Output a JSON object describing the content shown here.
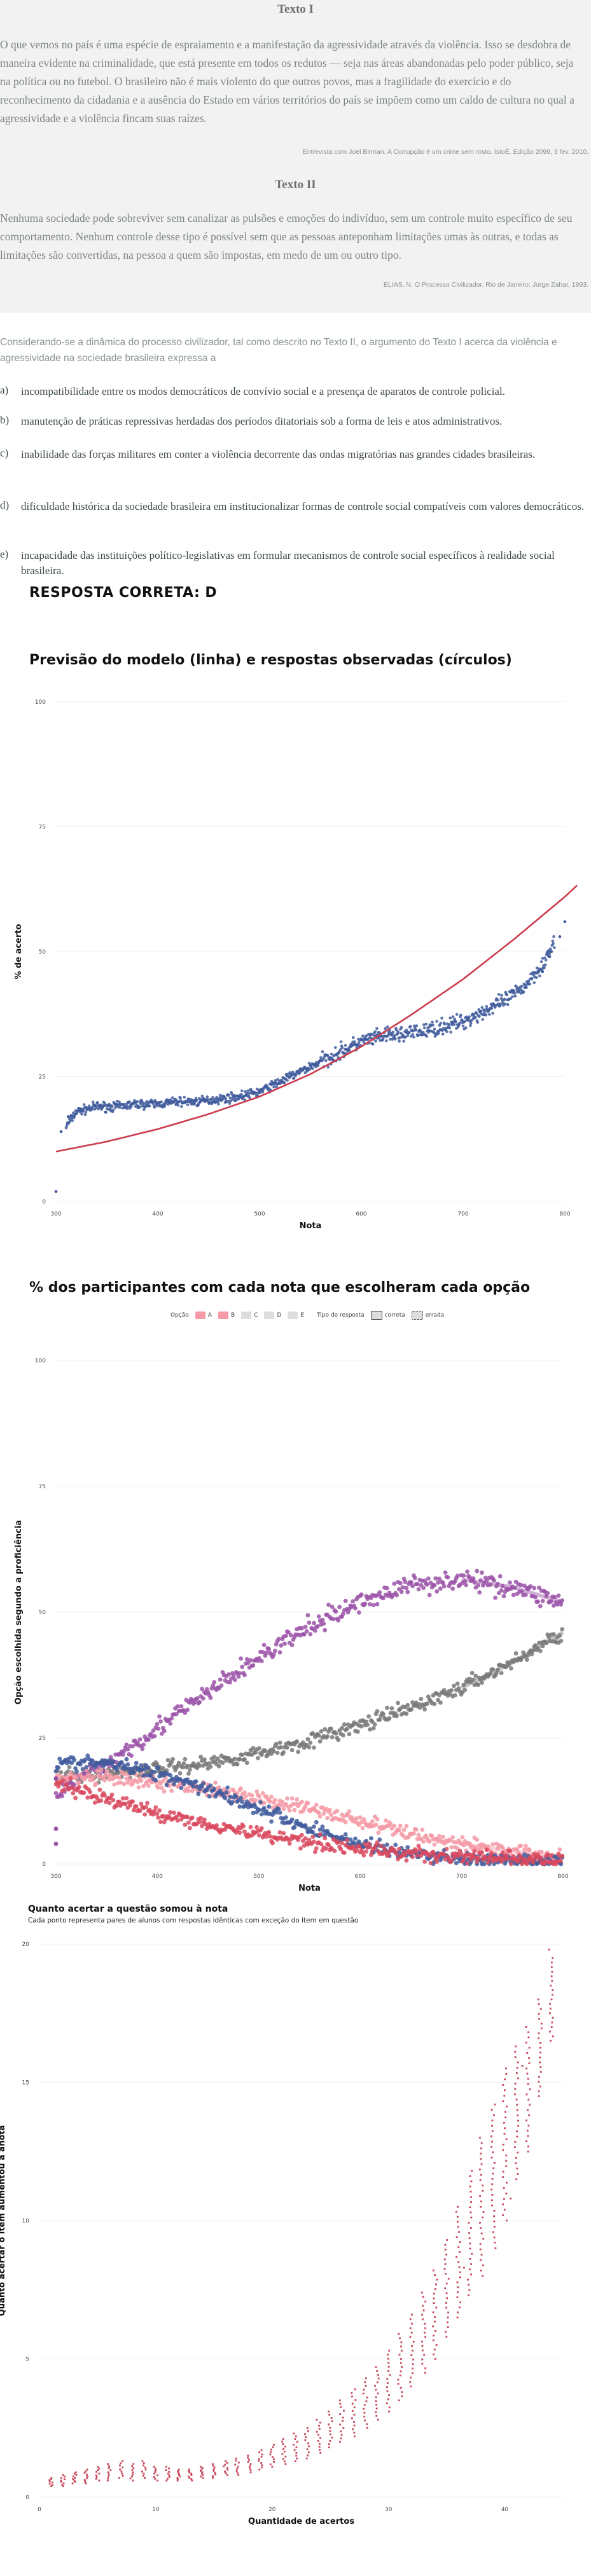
{
  "question": {
    "texto1_title": "Texto I",
    "texto1_body": "O que vemos no país é uma espécie de espraiamento e a manifestação da agressividade através da violência. Isso se desdobra de maneira evidente na criminalidade, que está presente em todos os redutos — seja nas áreas abandonadas pelo poder público, seja na política ou no futebol. O brasileiro não é mais violento do que outros povos, mas a fragilidade do exercício e do reconhecimento da cidadania e a ausência do Estado em vários territórios do país se impõem como um caldo de cultura no qual a agressividade e a violência fincam suas raízes.",
    "texto1_cite": "Entrevista com Joel Birman. A Corrupção é um crime sem rosto. IstoÉ. Edição 2099, 3 fev. 2010.",
    "texto2_title": "Texto II",
    "texto2_body": "Nenhuma sociedade pode sobreviver sem canalizar as pulsões e emoções do indivíduo, sem um controle muito específico de seu comportamento. Nenhum controle desse tipo é possível sem que as pessoas anteponham limitações umas às outras, e todas as limitações são convertidas, na pessoa a quem são impostas, em medo de um ou outro tipo.",
    "texto2_cite": "ELIAS, N. O Processo Civilizador. Rio de Janeiro: Jorge Zahar, 1993.",
    "stem": "Considerando-se a dinâmica do processo civilizador, tal como descrito no Texto II, o argumento do Texto I acerca da violência e agressividade na sociedade brasileira expressa a",
    "alternatives": [
      {
        "letter": "a)",
        "text": "incompatibilidade entre os modos democráticos de convívio social e a presença de aparatos de controle policial."
      },
      {
        "letter": "b)",
        "text": "manutenção de práticas repressivas herdadas dos períodos ditatoriais sob a forma de leis e atos administrativos."
      },
      {
        "letter": "c)",
        "text": "inabilidade das forças militares em conter a violência decorrente das ondas migratórias nas grandes cidades brasileiras."
      },
      {
        "letter": "d)",
        "text": "dificuldade histórica da sociedade brasileira em institucionalizar formas de controle social compatíveis com valores democráticos."
      },
      {
        "letter": "e)",
        "text": "incapacidade das instituições político-legislativas em formular mecanismos de controle social específicos à realidade social brasileira."
      }
    ],
    "answer": "RESPOSTA CORRETA: D"
  },
  "colors": {
    "model_line": "#cc3a4d",
    "observed": "#3f5a9c",
    "opt_A": "#d9495e",
    "opt_B": "#f59aa6",
    "opt_C": "#3f5a9c",
    "opt_D": "#9b52a8",
    "opt_E": "#787878",
    "gain": "#c8475a"
  },
  "chart_data": [
    {
      "type": "scatter",
      "title": "Previsão do modelo (linha) e respostas observadas (círculos)",
      "xlabel": "Nota",
      "ylabel": "% de acerto",
      "xlim": [
        300,
        800
      ],
      "ylim": [
        0,
        100
      ],
      "x_ticks": [
        "300",
        "400",
        "500",
        "600",
        "700",
        "800"
      ],
      "y_ticks": [
        "0",
        "25",
        "50",
        "75",
        "100"
      ],
      "series": [
        {
          "kind": "line",
          "x": [
            300,
            350,
            400,
            450,
            500,
            550,
            600,
            650,
            700,
            750,
            800
          ],
          "y": [
            10,
            12,
            14.5,
            17.5,
            21,
            25.5,
            31,
            37.5,
            44.5,
            52.5,
            61
          ]
        },
        {
          "kind": "points",
          "x": [
            300,
            310,
            320,
            340,
            360,
            380,
            400,
            420,
            440,
            460,
            480,
            500,
            520,
            540,
            560,
            580,
            600,
            620,
            640,
            660,
            680,
            700,
            720,
            740,
            760,
            780,
            800
          ],
          "y": [
            2,
            15,
            18,
            19,
            19,
            19.5,
            19.5,
            20,
            20,
            20.5,
            21,
            22,
            24,
            26,
            28,
            30,
            32,
            33,
            33.5,
            34,
            35,
            36,
            38,
            40,
            43,
            48,
            56
          ]
        }
      ]
    },
    {
      "type": "scatter",
      "title": "% dos participantes com cada nota que escolheram cada opção",
      "xlabel": "Nota",
      "ylabel": "Opção escolhida segundo a proficiência",
      "xlim": [
        300,
        800
      ],
      "ylim": [
        0,
        100
      ],
      "x_ticks": [
        "300",
        "400",
        "500",
        "600",
        "700",
        "800"
      ],
      "y_ticks": [
        "0",
        "25",
        "50",
        "75",
        "100"
      ],
      "legend": {
        "opcao_label": "Opção",
        "tipo_label": "Tipo de resposta",
        "options": [
          "A",
          "B",
          "C",
          "D",
          "E"
        ],
        "tipos": [
          "correta",
          "errada"
        ]
      },
      "series": [
        {
          "name": "A",
          "x": [
            300,
            350,
            400,
            450,
            500,
            550,
            600,
            650,
            700,
            750,
            800
          ],
          "y": [
            16,
            13,
            10,
            8,
            6,
            4.5,
            3,
            2,
            1.5,
            1,
            0.5
          ]
        },
        {
          "name": "B",
          "x": [
            300,
            350,
            400,
            450,
            500,
            550,
            600,
            650,
            700,
            750,
            800
          ],
          "y": [
            17,
            17,
            16,
            15,
            13,
            11,
            8.5,
            6,
            4,
            2.5,
            1.5
          ]
        },
        {
          "name": "C",
          "x": [
            300,
            350,
            400,
            450,
            500,
            550,
            600,
            650,
            700,
            750,
            800
          ],
          "y": [
            20,
            20,
            18,
            15,
            11,
            7,
            4,
            2,
            1,
            0.5,
            0.3
          ]
        },
        {
          "name": "D",
          "x": [
            300,
            350,
            400,
            450,
            500,
            550,
            600,
            650,
            700,
            750,
            800
          ],
          "y": [
            14,
            20,
            27,
            34,
            41,
            47,
            52,
            55.5,
            56.5,
            55,
            52
          ]
        },
        {
          "name": "E",
          "x": [
            300,
            350,
            400,
            450,
            500,
            550,
            600,
            650,
            700,
            750,
            800
          ],
          "y": [
            17,
            18,
            19,
            20,
            22,
            24.5,
            27.5,
            31,
            35,
            40,
            46
          ]
        }
      ]
    },
    {
      "type": "scatter",
      "title": "Quanto acertar a questão somou à nota",
      "subtitle": "Cada ponto representa pares de alunos com respostas idênticas com exceção do item em questão",
      "xlabel": "Quantidade de acertos",
      "ylabel": "Quanto acertar o item aumentou a anota",
      "xlim": [
        0,
        45
      ],
      "ylim": [
        0,
        20
      ],
      "x_ticks": [
        "0",
        "10",
        "20",
        "30",
        "40"
      ],
      "y_ticks": [
        "0",
        "5",
        "10",
        "15",
        "20"
      ],
      "x": [
        1,
        2,
        3,
        4,
        5,
        6,
        7,
        8,
        9,
        10,
        11,
        12,
        13,
        14,
        15,
        16,
        17,
        18,
        19,
        20,
        21,
        22,
        23,
        24,
        25,
        26,
        27,
        28,
        29,
        30,
        31,
        32,
        33,
        34,
        35,
        36,
        37,
        38,
        39,
        40,
        41,
        42,
        43,
        44
      ],
      "y_min": [
        0.4,
        0.4,
        0.5,
        0.5,
        0.6,
        0.6,
        0.7,
        0.6,
        0.7,
        0.6,
        0.6,
        0.6,
        0.6,
        0.7,
        0.7,
        0.8,
        0.8,
        0.9,
        1.0,
        1.1,
        1.2,
        1.3,
        1.4,
        1.6,
        1.8,
        2.0,
        2.2,
        2.5,
        2.8,
        3.1,
        3.5,
        4.0,
        4.5,
        5.0,
        5.8,
        6.5,
        7.3,
        8.0,
        9.2,
        10.0,
        11.5,
        12.5,
        14.5,
        16.5
      ],
      "y_max": [
        0.7,
        0.8,
        0.9,
        1.0,
        1.1,
        1.2,
        1.3,
        1.2,
        1.3,
        1.1,
        1.1,
        1.0,
        1.0,
        1.1,
        1.2,
        1.3,
        1.4,
        1.5,
        1.7,
        1.9,
        2.1,
        2.3,
        2.5,
        2.8,
        3.1,
        3.5,
        3.9,
        4.3,
        4.7,
        5.3,
        5.9,
        6.6,
        7.4,
        8.2,
        9.3,
        10.5,
        11.8,
        13.0,
        14.2,
        15.5,
        16.3,
        17.0,
        18.0,
        19.5
      ]
    }
  ]
}
